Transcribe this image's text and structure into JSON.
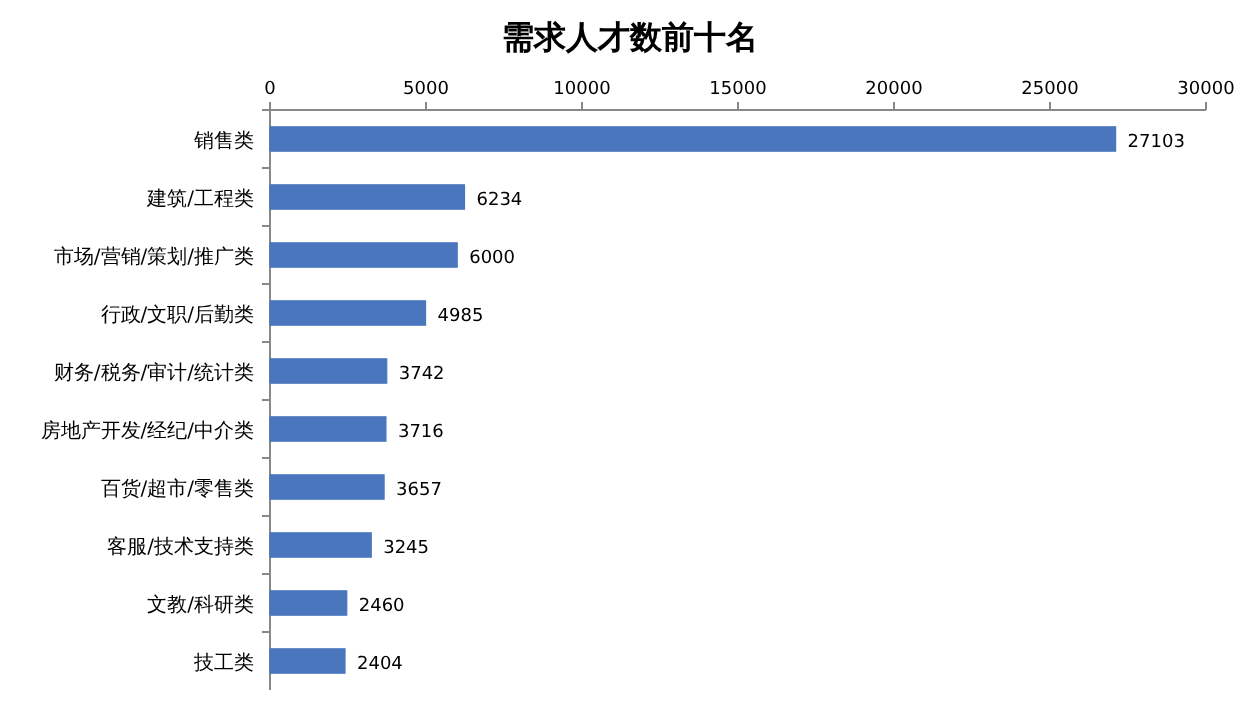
{
  "chart_data": {
    "type": "bar",
    "orientation": "horizontal",
    "title": "需求人才数前十名",
    "categories": [
      "销售类",
      "建筑/工程类",
      "市场/营销/策划/推广类",
      "行政/文职/后勤类",
      "财务/税务/审计/统计类",
      "房地产开发/经纪/中介类",
      "百货/超市/零售类",
      "客服/技术支持类",
      "文教/科研类",
      "技工类"
    ],
    "values": [
      27103,
      6234,
      6000,
      4985,
      3742,
      3716,
      3657,
      3245,
      2460,
      2404
    ],
    "color": "#4a76be",
    "xlim": [
      0,
      30000
    ],
    "xticks": [
      0,
      5000,
      10000,
      15000,
      20000,
      25000,
      30000
    ],
    "data_labels": true,
    "grid": false
  }
}
